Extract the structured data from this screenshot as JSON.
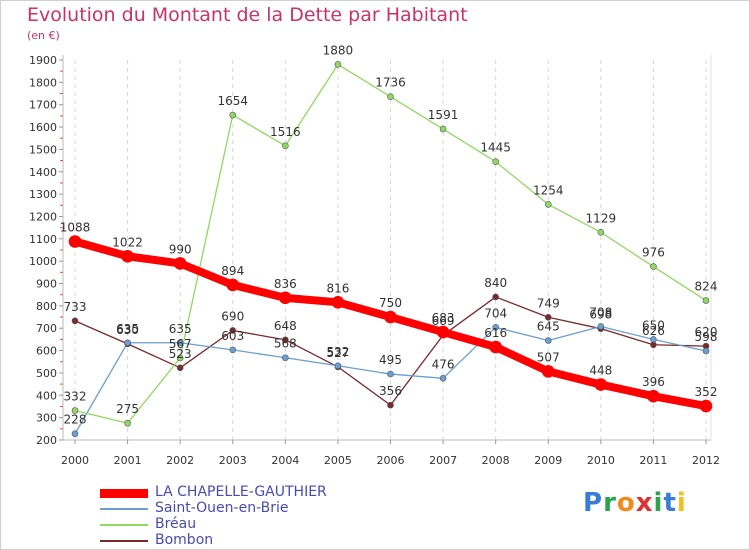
{
  "title": "Evolution du Montant de la Dette par Habitant",
  "unit_label": "(en €)",
  "logo": {
    "letters": [
      {
        "ch": "P",
        "color": "#3a7bd5"
      },
      {
        "ch": "r",
        "color": "#2ba24c"
      },
      {
        "ch": "o",
        "color": "#f08a1c"
      },
      {
        "ch": "x",
        "color": "#e03030"
      },
      {
        "ch": "i",
        "color": "#2ba24c"
      },
      {
        "ch": "t",
        "color": "#3a7bd5"
      },
      {
        "ch": "i",
        "color": "#f0c020"
      }
    ]
  },
  "chart_data": {
    "type": "line",
    "title": "Evolution du Montant de la Dette par Habitant",
    "ylabel": "(en €)",
    "xlabel": "",
    "ylim": [
      200,
      1900
    ],
    "yticks": [
      200,
      300,
      400,
      500,
      600,
      700,
      800,
      900,
      1000,
      1100,
      1200,
      1300,
      1400,
      1500,
      1600,
      1700,
      1800,
      1900
    ],
    "categories": [
      "2000",
      "2001",
      "2002",
      "2003",
      "2004",
      "2005",
      "2006",
      "2007",
      "2008",
      "2009",
      "2010",
      "2011",
      "2012"
    ],
    "grid": "vertical dashed",
    "legend_position": "bottom-left",
    "series": [
      {
        "name": "LA CHAPELLE-GAUTHIER",
        "color": "#ff0000",
        "width": 8,
        "labels": true,
        "values": [
          1088,
          1022,
          990,
          894,
          836,
          816,
          750,
          683,
          616,
          507,
          448,
          396,
          352
        ]
      },
      {
        "name": "Saint-Ouen-en-Brie",
        "color": "#6a9fd0",
        "width": 1.3,
        "labels": true,
        "values": [
          228,
          635,
          635,
          603,
          568,
          532,
          495,
          476,
          704,
          645,
          708,
          650,
          598
        ]
      },
      {
        "name": "Bréau",
        "color": "#90d860",
        "width": 1.3,
        "labels": true,
        "values": [
          332,
          275,
          567,
          1654,
          1516,
          1880,
          1736,
          1591,
          1445,
          1254,
          1129,
          976,
          824
        ]
      },
      {
        "name": "Bombon",
        "color": "#7a2a2a",
        "width": 1.3,
        "labels": true,
        "values": [
          733,
          630,
          523,
          690,
          648,
          527,
          356,
          669,
          840,
          749,
          698,
          626,
          620
        ]
      }
    ]
  }
}
